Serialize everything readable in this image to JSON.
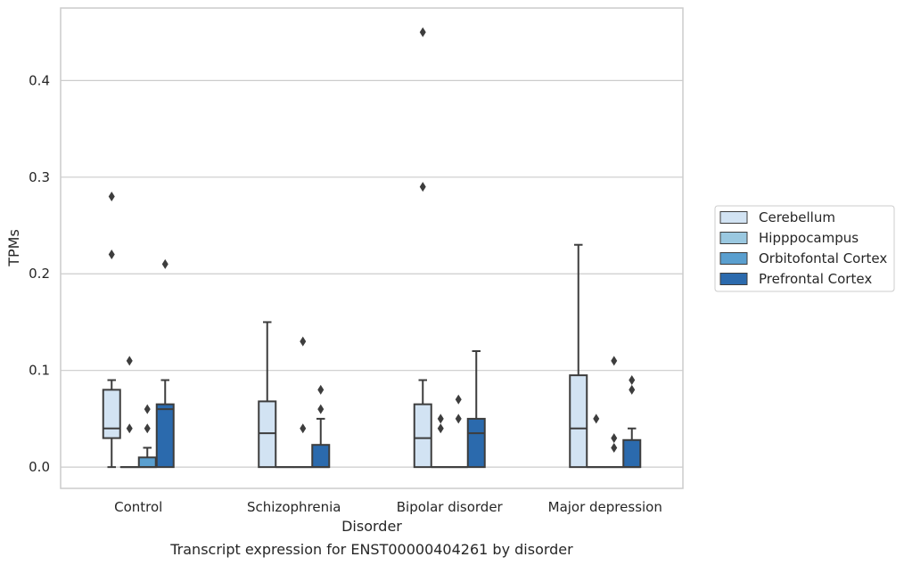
{
  "chart_data": {
    "type": "box",
    "title": "",
    "caption": "Transcript expression for ENST00000404261 by disorder",
    "xlabel": "Disorder",
    "ylabel": "TPMs",
    "ylim": [
      -0.022,
      0.475
    ],
    "yticks": [
      0.0,
      0.1,
      0.2,
      0.3,
      0.4
    ],
    "ytick_labels": [
      "0.0",
      "0.1",
      "0.2",
      "0.3",
      "0.4"
    ],
    "grid": "horizontal",
    "legend_position": "center-right",
    "categories": [
      "Control",
      "Schizophrenia",
      "Bipolar disorder",
      "Major depression"
    ],
    "series": [
      {
        "name": "Cerebellum",
        "color": "#d2e3f3",
        "boxes": [
          {
            "whislo": 0.0,
            "q1": 0.03,
            "med": 0.04,
            "q3": 0.08,
            "whishi": 0.09,
            "fliers": [
              0.22,
              0.28
            ]
          },
          {
            "whislo": 0.0,
            "q1": 0.0,
            "med": 0.035,
            "q3": 0.068,
            "whishi": 0.15,
            "fliers": []
          },
          {
            "whislo": 0.0,
            "q1": 0.0,
            "med": 0.03,
            "q3": 0.065,
            "whishi": 0.09,
            "fliers": [
              0.29,
              0.45
            ]
          },
          {
            "whislo": 0.0,
            "q1": 0.0,
            "med": 0.04,
            "q3": 0.095,
            "whishi": 0.23,
            "fliers": []
          }
        ]
      },
      {
        "name": "Hipppocampus",
        "color": "#9ac8e0",
        "boxes": [
          {
            "whislo": 0.0,
            "q1": 0.0,
            "med": 0.0,
            "q3": 0.0,
            "whishi": 0.0,
            "fliers": [
              0.04,
              0.11
            ]
          },
          {
            "whislo": 0.0,
            "q1": 0.0,
            "med": 0.0,
            "q3": 0.0,
            "whishi": 0.0,
            "fliers": []
          },
          {
            "whislo": 0.0,
            "q1": 0.0,
            "med": 0.0,
            "q3": 0.0,
            "whishi": 0.0,
            "fliers": [
              0.04,
              0.05
            ]
          },
          {
            "whislo": 0.0,
            "q1": 0.0,
            "med": 0.0,
            "q3": 0.0,
            "whishi": 0.0,
            "fliers": [
              0.05
            ]
          }
        ]
      },
      {
        "name": "Orbitofontal Cortex",
        "color": "#5a9fcf",
        "boxes": [
          {
            "whislo": 0.0,
            "q1": 0.0,
            "med": 0.0,
            "q3": 0.01,
            "whishi": 0.02,
            "fliers": [
              0.04,
              0.06
            ]
          },
          {
            "whislo": 0.0,
            "q1": 0.0,
            "med": 0.0,
            "q3": 0.0,
            "whishi": 0.0,
            "fliers": [
              0.04,
              0.13
            ]
          },
          {
            "whislo": 0.0,
            "q1": 0.0,
            "med": 0.0,
            "q3": 0.0,
            "whishi": 0.0,
            "fliers": [
              0.05,
              0.07
            ]
          },
          {
            "whislo": 0.0,
            "q1": 0.0,
            "med": 0.0,
            "q3": 0.0,
            "whishi": 0.0,
            "fliers": [
              0.02,
              0.03,
              0.11
            ]
          }
        ]
      },
      {
        "name": "Prefrontal Cortex",
        "color": "#2b6aad",
        "boxes": [
          {
            "whislo": 0.0,
            "q1": 0.0,
            "med": 0.06,
            "q3": 0.065,
            "whishi": 0.09,
            "fliers": [
              0.21
            ]
          },
          {
            "whislo": 0.0,
            "q1": 0.0,
            "med": 0.0,
            "q3": 0.023,
            "whishi": 0.05,
            "fliers": [
              0.06,
              0.08
            ]
          },
          {
            "whislo": 0.0,
            "q1": 0.0,
            "med": 0.035,
            "q3": 0.05,
            "whishi": 0.12,
            "fliers": []
          },
          {
            "whislo": 0.0,
            "q1": 0.0,
            "med": 0.0,
            "q3": 0.028,
            "whishi": 0.04,
            "fliers": [
              0.08,
              0.09
            ]
          }
        ]
      }
    ]
  }
}
